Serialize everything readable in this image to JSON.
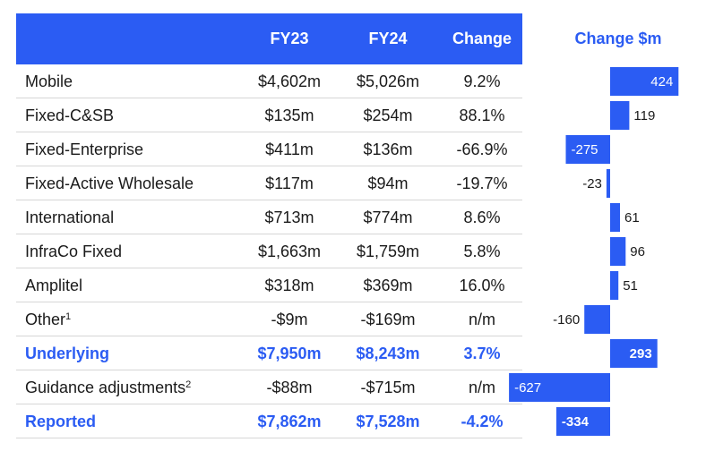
{
  "table": {
    "headers": [
      "",
      "FY23",
      "FY24",
      "Change"
    ],
    "rows": [
      {
        "label": "Mobile",
        "sup": "",
        "fy23": "$4,602m",
        "fy24": "$5,026m",
        "change": "9.2%",
        "bold": false
      },
      {
        "label": "Fixed-C&SB",
        "sup": "",
        "fy23": "$135m",
        "fy24": "$254m",
        "change": "88.1%",
        "bold": false
      },
      {
        "label": "Fixed-Enterprise",
        "sup": "",
        "fy23": "$411m",
        "fy24": "$136m",
        "change": "-66.9%",
        "bold": false
      },
      {
        "label": "Fixed-Active Wholesale",
        "sup": "",
        "fy23": "$117m",
        "fy24": "$94m",
        "change": "-19.7%",
        "bold": false
      },
      {
        "label": "International",
        "sup": "",
        "fy23": "$713m",
        "fy24": "$774m",
        "change": "8.6%",
        "bold": false
      },
      {
        "label": "InfraCo Fixed",
        "sup": "",
        "fy23": "$1,663m",
        "fy24": "$1,759m",
        "change": "5.8%",
        "bold": false
      },
      {
        "label": "Amplitel",
        "sup": "",
        "fy23": "$318m",
        "fy24": "$369m",
        "change": "16.0%",
        "bold": false
      },
      {
        "label": "Other",
        "sup": "1",
        "fy23": "-$9m",
        "fy24": "-$169m",
        "change": "n/m",
        "bold": false
      },
      {
        "label": "Underlying",
        "sup": "",
        "fy23": "$7,950m",
        "fy24": "$8,243m",
        "change": "3.7%",
        "bold": true
      },
      {
        "label": "Guidance adjustments",
        "sup": "2",
        "fy23": "-$88m",
        "fy24": "-$715m",
        "change": "n/m",
        "bold": false
      },
      {
        "label": "Reported",
        "sup": "",
        "fy23": "$7,862m",
        "fy24": "$7,528m",
        "change": "-4.2%",
        "bold": true
      }
    ]
  },
  "chart_data": {
    "type": "bar",
    "orientation": "horizontal",
    "title": "Change $m",
    "categories": [
      "Mobile",
      "Fixed-C&SB",
      "Fixed-Enterprise",
      "Fixed-Active Wholesale",
      "International",
      "InfraCo Fixed",
      "Amplitel",
      "Other",
      "Underlying",
      "Guidance adjustments",
      "Reported"
    ],
    "values": [
      424,
      119,
      -275,
      -23,
      61,
      96,
      51,
      -160,
      293,
      -627,
      -334
    ],
    "value_labels": [
      "424",
      "119",
      "-275",
      "-23",
      "61",
      "96",
      "51",
      "-160",
      "293",
      "-627",
      "-334"
    ],
    "xlim": [
      -627,
      424
    ],
    "grid": false,
    "legend": "none",
    "bar_color": "#2b5cf3"
  },
  "colors": {
    "accent": "#2b5cf3",
    "text": "#1a1a1a",
    "divider": "#d6d6d6"
  }
}
